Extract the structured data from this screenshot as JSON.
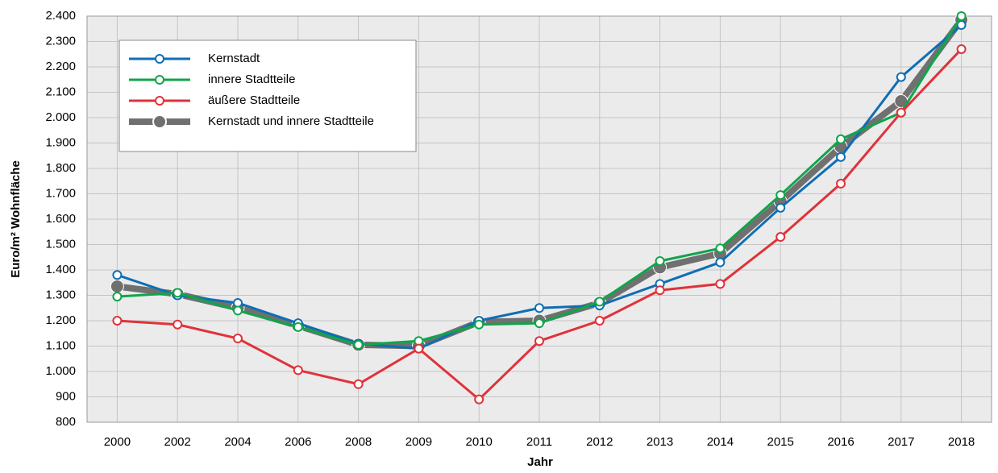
{
  "chart_data": {
    "type": "line",
    "x_label": "Jahr",
    "y_label": "Euro/m² Wohnfläche",
    "categories": [
      "2000",
      "2002",
      "2004",
      "2006",
      "2008",
      "2009",
      "2010",
      "2011",
      "2012",
      "2013",
      "2014",
      "2015",
      "2016",
      "2017",
      "2018"
    ],
    "series": [
      {
        "name": "Kernstadt und innere Stadtteile",
        "color": "#707070",
        "values": [
          1335,
          1305,
          1250,
          1180,
          1105,
          1100,
          1195,
          1200,
          1270,
          1410,
          1465,
          1670,
          1885,
          2065,
          2385
        ]
      },
      {
        "name": "Kernstadt",
        "color": "#0f6eb4",
        "values": [
          1380,
          1300,
          1270,
          1190,
          1110,
          1090,
          1200,
          1250,
          1260,
          1345,
          1430,
          1645,
          1845,
          2160,
          2365
        ]
      },
      {
        "name": "innere Stadtteile",
        "color": "#10a54a",
        "values": [
          1295,
          1310,
          1240,
          1175,
          1105,
          1120,
          1185,
          1190,
          1275,
          1435,
          1485,
          1695,
          1915,
          2020,
          2400
        ]
      },
      {
        "name": "äußere Stadtteile",
        "color": "#e0323a",
        "values": [
          1200,
          1185,
          1130,
          1005,
          950,
          1090,
          890,
          1120,
          1200,
          1320,
          1345,
          1530,
          1740,
          2020,
          2270
        ]
      }
    ],
    "legend_order": [
      1,
      2,
      3,
      0
    ],
    "ylim": [
      800,
      2400
    ],
    "yticks": [
      800,
      900,
      {
        "value": 1000,
        "label": "1.000"
      },
      {
        "value": 1100,
        "label": "1.100"
      },
      {
        "value": 1200,
        "label": "1.200"
      },
      {
        "value": 1300,
        "label": "1.300"
      },
      {
        "value": 1400,
        "label": "1.400"
      },
      {
        "value": 1500,
        "label": "1.500"
      },
      {
        "value": 1600,
        "label": "1.600"
      },
      {
        "value": 1700,
        "label": "1.700"
      },
      {
        "value": 1800,
        "label": "1.800"
      },
      {
        "value": 1900,
        "label": "1.900"
      },
      {
        "value": 2000,
        "label": "2.000"
      },
      {
        "value": 2100,
        "label": "2.100"
      },
      {
        "value": 2200,
        "label": "2.200"
      },
      {
        "value": 2300,
        "label": "2.300"
      },
      {
        "value": 2400,
        "label": "2.400"
      }
    ],
    "grid": true
  }
}
